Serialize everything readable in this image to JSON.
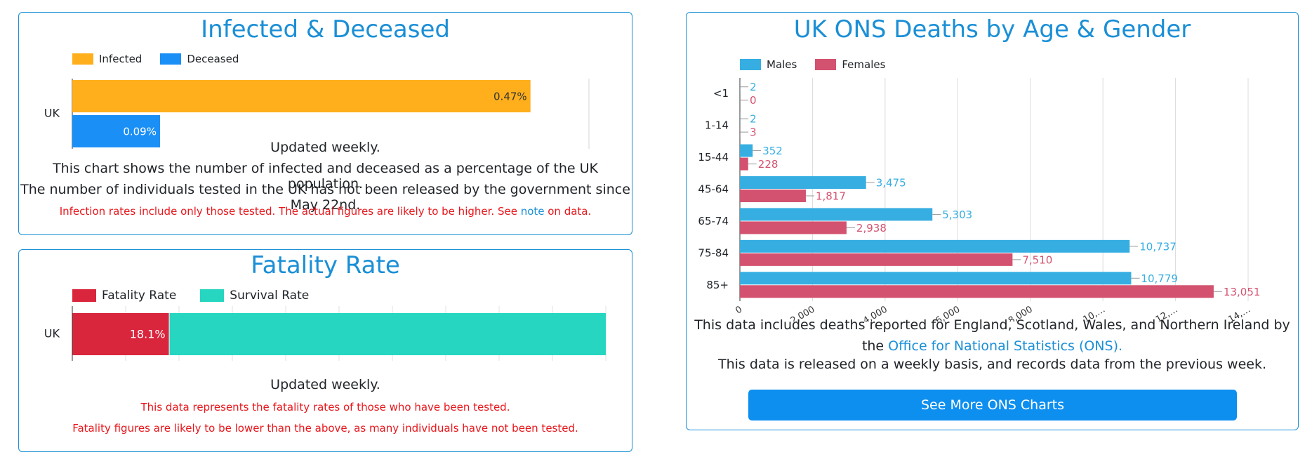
{
  "infected_card": {
    "title": "Infected & Deceased",
    "legend": [
      "Infected",
      "Deceased"
    ],
    "note_updated": "Updated weekly.",
    "note_desc": "This chart shows the number of infected and deceased as a percentage of the UK population.",
    "note_tested": "The number of individuals tested in the UK has not been released by the government since May 22nd.",
    "warn_before": "Infection rates include only those tested. The actual figures are likely to be higher. See ",
    "warn_link": "note",
    "warn_after": " on data."
  },
  "fatality_card": {
    "title": "Fatality Rate",
    "legend": [
      "Fatality Rate",
      "Survival Rate"
    ],
    "note_updated": "Updated weekly.",
    "warn_1": "This data represents the fatality rates of those who have been tested.",
    "warn_2": "Fatality figures are likely to be lower than the above, as many individuals have not been tested."
  },
  "ons_card": {
    "title": "UK ONS Deaths by Age & Gender",
    "legend": [
      "Males",
      "Females"
    ],
    "desc_before": "This data includes deaths reported for England, Scotland, Wales, and Northern Ireland by the ",
    "desc_link": "Office for National Statistics (ONS).",
    "desc_weekly": "This data is released on a weekly basis, and records data from the previous week.",
    "button_label": "See More ONS Charts"
  },
  "colors": {
    "infected": "#ffaf1c",
    "deceased": "#1a8ff5",
    "fatality": "#d9263d",
    "survival": "#26d6c0",
    "males": "#36aee2",
    "females": "#d3526f",
    "accent": "#1a8fd6",
    "warning": "#e8161b"
  },
  "chart_data": [
    {
      "type": "bar",
      "orientation": "horizontal",
      "categories": [
        "UK"
      ],
      "series": [
        {
          "name": "Infected",
          "values": [
            0.47
          ],
          "labels": [
            "0.47%"
          ]
        },
        {
          "name": "Deceased",
          "values": [
            0.09
          ],
          "labels": [
            "0.09%"
          ]
        }
      ],
      "xlim": [
        0,
        0.53
      ],
      "legend": "top-left",
      "grid": true
    },
    {
      "type": "bar",
      "orientation": "horizontal",
      "stacked": true,
      "categories": [
        "UK"
      ],
      "series": [
        {
          "name": "Fatality Rate",
          "values": [
            18.1
          ],
          "labels": [
            "18.1%"
          ]
        },
        {
          "name": "Survival Rate",
          "values": [
            81.9
          ]
        }
      ],
      "xlim": [
        0,
        100
      ],
      "legend": "top-left",
      "grid": true
    },
    {
      "type": "bar",
      "orientation": "horizontal",
      "categories": [
        "<1",
        "1-14",
        "15-44",
        "45-64",
        "65-74",
        "75-84",
        "85+"
      ],
      "series": [
        {
          "name": "Males",
          "values": [
            2,
            2,
            352,
            3475,
            5303,
            10737,
            10779
          ],
          "labels": [
            "2",
            "2",
            "352",
            "3,475",
            "5,303",
            "10,737",
            "10,779"
          ]
        },
        {
          "name": "Females",
          "values": [
            0,
            3,
            228,
            1817,
            2938,
            7510,
            13051
          ],
          "labels": [
            "0",
            "3",
            "228",
            "1,817",
            "2,938",
            "7,510",
            "13,051"
          ]
        }
      ],
      "xlim": [
        0,
        14000
      ],
      "xticks": [
        "0",
        "2,000",
        "4,000",
        "6,000",
        "8,000",
        "10,…",
        "12,…",
        "14,…"
      ],
      "legend": "top-left",
      "grid": true
    }
  ]
}
